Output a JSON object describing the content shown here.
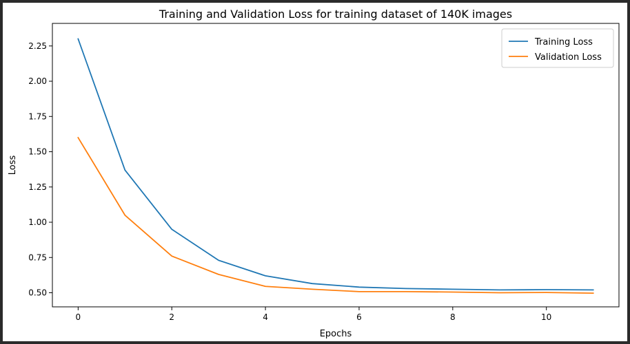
{
  "chart_data": {
    "type": "line",
    "title": "Training and Validation Loss for training dataset of 140K images",
    "xlabel": "Epochs",
    "ylabel": "Loss",
    "xlim": [
      -0.55,
      11.55
    ],
    "ylim": [
      0.4,
      2.41
    ],
    "xticks": [
      0,
      2,
      4,
      6,
      8,
      10
    ],
    "yticks": [
      0.5,
      0.75,
      1.0,
      1.25,
      1.5,
      1.75,
      2.0,
      2.25
    ],
    "ytick_labels": [
      "0.50",
      "0.75",
      "1.00",
      "1.25",
      "1.50",
      "1.75",
      "2.00",
      "2.25"
    ],
    "grid": false,
    "legend": "top-right",
    "x": [
      0,
      1,
      2,
      3,
      4,
      5,
      6,
      7,
      8,
      9,
      10,
      11
    ],
    "series": [
      {
        "name": "Training Loss",
        "color": "#1f77b4",
        "values": [
          2.3,
          1.37,
          0.95,
          0.73,
          0.62,
          0.565,
          0.54,
          0.53,
          0.525,
          0.52,
          0.522,
          0.52
        ]
      },
      {
        "name": "Validation Loss",
        "color": "#ff7f0e",
        "values": [
          1.6,
          1.05,
          0.76,
          0.63,
          0.545,
          0.525,
          0.508,
          0.508,
          0.505,
          0.5,
          0.502,
          0.497
        ]
      }
    ]
  }
}
